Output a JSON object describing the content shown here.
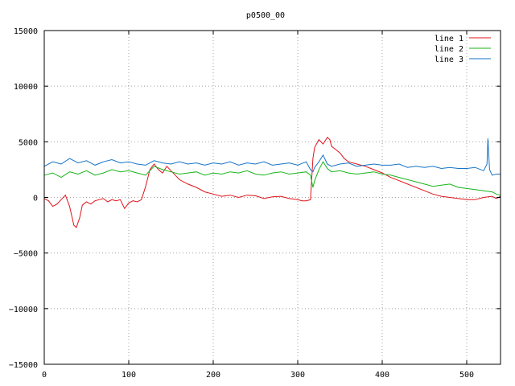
{
  "chart_data": {
    "type": "line",
    "title": "p0500_00",
    "xlim": [
      0,
      540
    ],
    "ylim": [
      -15000,
      15000
    ],
    "grid": true,
    "legend_position": "top-right",
    "x_ticks": [
      0,
      100,
      200,
      300,
      400,
      500
    ],
    "x_tick_labels": [
      "0",
      "100",
      "200",
      "300",
      "400",
      "500"
    ],
    "y_ticks": [
      -15000,
      -10000,
      -5000,
      0,
      5000,
      10000,
      15000
    ],
    "y_tick_labels": [
      "−15000",
      "−10000",
      "−5000",
      "0",
      "5000",
      "10000",
      "15000"
    ],
    "series": [
      {
        "name": "line 1",
        "color": "#e0141b",
        "x": [
          0,
          5,
          10,
          15,
          20,
          25,
          30,
          35,
          38,
          42,
          45,
          50,
          55,
          60,
          65,
          70,
          75,
          80,
          85,
          90,
          95,
          100,
          105,
          110,
          115,
          120,
          125,
          130,
          135,
          140,
          145,
          150,
          155,
          160,
          170,
          180,
          190,
          200,
          210,
          220,
          230,
          240,
          250,
          260,
          270,
          280,
          290,
          300,
          305,
          310,
          315,
          318,
          320,
          325,
          330,
          335,
          338,
          340,
          345,
          350,
          355,
          360,
          370,
          380,
          390,
          400,
          410,
          420,
          430,
          440,
          450,
          460,
          470,
          480,
          490,
          500,
          510,
          520,
          530,
          535,
          540
        ],
        "y": [
          -100,
          -300,
          -800,
          -600,
          -200,
          200,
          -800,
          -2500,
          -2700,
          -1800,
          -700,
          -400,
          -600,
          -300,
          -200,
          -100,
          -400,
          -200,
          -300,
          -200,
          -1000,
          -500,
          -300,
          -400,
          -200,
          1000,
          2500,
          3000,
          2500,
          2200,
          2800,
          2400,
          2000,
          1600,
          1200,
          900,
          500,
          300,
          100,
          200,
          0,
          200,
          150,
          -100,
          50,
          100,
          -100,
          -200,
          -300,
          -300,
          -200,
          3500,
          4500,
          5200,
          4800,
          5400,
          5200,
          4600,
          4300,
          4000,
          3500,
          3200,
          3000,
          2800,
          2500,
          2200,
          1800,
          1500,
          1200,
          900,
          600,
          300,
          100,
          0,
          -100,
          -200,
          -200,
          0,
          100,
          -100,
          100
        ]
      },
      {
        "name": "line 2",
        "color": "#18b41a",
        "x": [
          0,
          10,
          20,
          30,
          40,
          50,
          60,
          70,
          80,
          90,
          100,
          110,
          120,
          130,
          140,
          150,
          160,
          170,
          180,
          190,
          200,
          210,
          220,
          230,
          240,
          250,
          260,
          270,
          280,
          290,
          300,
          310,
          315,
          318,
          320,
          325,
          330,
          335,
          340,
          350,
          360,
          370,
          380,
          390,
          400,
          410,
          420,
          430,
          440,
          450,
          460,
          470,
          480,
          490,
          500,
          510,
          520,
          530,
          535,
          540
        ],
        "y": [
          2000,
          2200,
          1800,
          2300,
          2100,
          2400,
          2000,
          2200,
          2500,
          2300,
          2400,
          2200,
          2000,
          2800,
          2500,
          2300,
          2100,
          2200,
          2300,
          2000,
          2200,
          2100,
          2300,
          2200,
          2400,
          2100,
          2000,
          2200,
          2300,
          2100,
          2200,
          2300,
          2000,
          900,
          1500,
          2500,
          3200,
          2600,
          2300,
          2400,
          2200,
          2100,
          2200,
          2300,
          2100,
          2000,
          1800,
          1600,
          1400,
          1200,
          1000,
          1100,
          1200,
          900,
          800,
          700,
          600,
          500,
          300,
          200
        ]
      },
      {
        "name": "line 3",
        "color": "#1673c6",
        "x": [
          0,
          10,
          20,
          30,
          40,
          50,
          60,
          70,
          80,
          90,
          100,
          110,
          120,
          130,
          140,
          150,
          160,
          170,
          180,
          190,
          200,
          210,
          220,
          230,
          240,
          250,
          260,
          270,
          280,
          290,
          300,
          310,
          315,
          318,
          320,
          325,
          330,
          335,
          340,
          350,
          360,
          370,
          380,
          390,
          400,
          410,
          420,
          430,
          440,
          450,
          460,
          470,
          480,
          490,
          500,
          510,
          520,
          524,
          525,
          527,
          530,
          535,
          540
        ],
        "y": [
          2800,
          3200,
          3000,
          3500,
          3100,
          3300,
          2900,
          3200,
          3400,
          3100,
          3200,
          3000,
          2900,
          3300,
          3100,
          3000,
          3200,
          3000,
          3100,
          2900,
          3100,
          3000,
          3200,
          2900,
          3100,
          3000,
          3200,
          2900,
          3000,
          3100,
          2900,
          3200,
          2500,
          2300,
          2700,
          3200,
          3800,
          3000,
          2800,
          3000,
          3100,
          2800,
          2900,
          3000,
          2900,
          2900,
          3000,
          2700,
          2800,
          2700,
          2800,
          2600,
          2700,
          2600,
          2600,
          2700,
          2400,
          3000,
          5300,
          2500,
          2000,
          2100,
          2100
        ]
      }
    ]
  }
}
